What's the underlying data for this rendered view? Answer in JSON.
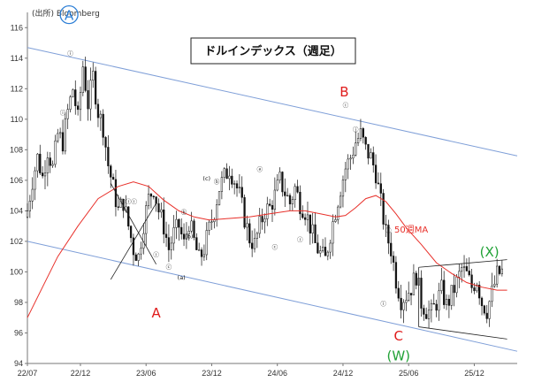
{
  "chart_data": {
    "type": "candlestick",
    "title": "ドルインデックス（週足）",
    "source": "(出所) Bloomberg",
    "ylim": [
      94,
      117
    ],
    "y_ticks": [
      94,
      96,
      98,
      100,
      102,
      104,
      106,
      108,
      110,
      112,
      114,
      116
    ],
    "x_tick_labels": [
      "22/07",
      "22/12",
      "23/06",
      "23/12",
      "24/06",
      "24/12",
      "25/06",
      "25/12"
    ],
    "grid": false,
    "moving_average_label": "50週MA",
    "colors": {
      "up": "#ffffff",
      "down": "#111111",
      "ma": "#e8302a",
      "channel": "#7f9fd8",
      "wave_red": "#e01b1b",
      "wave_green": "#21a236",
      "wave_blue": "#2d7fd6"
    },
    "weekly_close_path": [
      [
        0,
        104.0
      ],
      [
        2,
        106.0
      ],
      [
        4,
        107.5
      ],
      [
        6,
        106.2
      ],
      [
        8,
        108.0
      ],
      [
        10,
        106.8
      ],
      [
        12,
        109.0
      ],
      [
        14,
        108.5
      ],
      [
        16,
        110.5
      ],
      [
        18,
        112.0
      ],
      [
        20,
        110.0
      ],
      [
        22,
        113.5
      ],
      [
        24,
        111.0
      ],
      [
        26,
        112.8
      ],
      [
        28,
        110.5
      ],
      [
        30,
        109.5
      ],
      [
        32,
        107.0
      ],
      [
        34,
        105.5
      ],
      [
        36,
        104.0
      ],
      [
        38,
        104.6
      ],
      [
        40,
        103.0
      ],
      [
        42,
        101.5
      ],
      [
        44,
        101.0
      ],
      [
        46,
        103.2
      ],
      [
        48,
        104.8
      ],
      [
        50,
        105.5
      ],
      [
        52,
        104.0
      ],
      [
        54,
        103.0
      ],
      [
        56,
        101.5
      ],
      [
        58,
        102.5
      ],
      [
        60,
        103.0
      ],
      [
        62,
        101.8
      ],
      [
        64,
        103.3
      ],
      [
        66,
        102.0
      ],
      [
        68,
        100.8
      ],
      [
        70,
        101.5
      ],
      [
        72,
        102.8
      ],
      [
        74,
        104.0
      ],
      [
        76,
        105.5
      ],
      [
        78,
        106.2
      ],
      [
        80,
        106.8
      ],
      [
        82,
        106.0
      ],
      [
        84,
        105.0
      ],
      [
        86,
        103.5
      ],
      [
        88,
        102.2
      ],
      [
        90,
        101.8
      ],
      [
        92,
        103.0
      ],
      [
        94,
        104.0
      ],
      [
        96,
        104.2
      ],
      [
        98,
        105.0
      ],
      [
        100,
        106.0
      ],
      [
        102,
        105.2
      ],
      [
        104,
        104.5
      ],
      [
        106,
        105.5
      ],
      [
        108,
        104.5
      ],
      [
        110,
        104.0
      ],
      [
        112,
        103.0
      ],
      [
        114,
        101.8
      ],
      [
        116,
        101.2
      ],
      [
        118,
        100.8
      ],
      [
        120,
        102.5
      ],
      [
        122,
        104.0
      ],
      [
        124,
        105.5
      ],
      [
        126,
        106.8
      ],
      [
        128,
        107.5
      ],
      [
        130,
        108.5
      ],
      [
        132,
        109.0
      ],
      [
        134,
        108.0
      ],
      [
        136,
        107.5
      ],
      [
        138,
        106.5
      ],
      [
        140,
        104.5
      ],
      [
        142,
        102.5
      ],
      [
        144,
        101.5
      ],
      [
        146,
        99.5
      ],
      [
        148,
        98.2
      ],
      [
        150,
        98.5
      ],
      [
        152,
        99.0
      ],
      [
        154,
        99.8
      ],
      [
        156,
        98.0
      ],
      [
        158,
        97.5
      ],
      [
        160,
        97.3
      ],
      [
        162,
        98.0
      ],
      [
        164,
        98.8
      ],
      [
        166,
        97.8
      ],
      [
        168,
        98.5
      ],
      [
        170,
        99.3
      ],
      [
        172,
        100.2
      ],
      [
        174,
        99.8
      ],
      [
        176,
        99.0
      ],
      [
        178,
        99.5
      ],
      [
        180,
        98.0
      ],
      [
        182,
        97.5
      ],
      [
        184,
        98.6
      ],
      [
        186,
        99.8
      ],
      [
        188,
        100.0
      ]
    ],
    "moving_average_50w": [
      [
        0,
        97.0
      ],
      [
        6,
        99.0
      ],
      [
        12,
        101.0
      ],
      [
        20,
        103.0
      ],
      [
        28,
        104.8
      ],
      [
        36,
        105.6
      ],
      [
        42,
        105.9
      ],
      [
        48,
        105.6
      ],
      [
        54,
        104.7
      ],
      [
        60,
        104.0
      ],
      [
        66,
        103.6
      ],
      [
        72,
        103.4
      ],
      [
        80,
        103.5
      ],
      [
        88,
        103.6
      ],
      [
        96,
        103.8
      ],
      [
        104,
        104.0
      ],
      [
        110,
        104.0
      ],
      [
        116,
        103.8
      ],
      [
        122,
        103.6
      ],
      [
        126,
        103.7
      ],
      [
        130,
        104.2
      ],
      [
        134,
        104.8
      ],
      [
        138,
        105.0
      ],
      [
        142,
        104.6
      ],
      [
        146,
        103.8
      ],
      [
        150,
        102.9
      ],
      [
        156,
        101.8
      ],
      [
        162,
        100.6
      ],
      [
        168,
        99.9
      ],
      [
        174,
        99.3
      ],
      [
        180,
        99.0
      ],
      [
        186,
        98.8
      ],
      [
        190,
        98.8
      ]
    ],
    "channel_lines": [
      {
        "from": [
          0,
          114.7
        ],
        "to": [
          194,
          107.6
        ]
      },
      {
        "from": [
          0,
          102.0
        ],
        "to": [
          194,
          94.8
        ]
      }
    ],
    "wave_labels": [
      {
        "text": "A",
        "x": 16.5,
        "y": 116.5,
        "color": "blue",
        "circled": true
      },
      {
        "text": "A",
        "x": 51,
        "y": 97.0,
        "color": "red"
      },
      {
        "text": "B",
        "x": 125.5,
        "y": 111.5,
        "color": "red"
      },
      {
        "text": "C",
        "x": 147,
        "y": 95.5,
        "color": "red"
      },
      {
        "text": "(W)",
        "x": 147,
        "y": 94.2,
        "color": "green"
      },
      {
        "text": "(X)",
        "x": 183,
        "y": 101.0,
        "color": "green"
      }
    ],
    "annotations": [
      "ⓘ",
      "ⓘ",
      "ⓘⓘⓘ",
      "ⓘ",
      "ⓒ",
      "ⓑ",
      "(a)",
      "(b)",
      "(c)",
      "ⓑ",
      "ⓐ",
      "ⓒ",
      "ⓘ",
      "ⓘ",
      "ⓘ",
      "ⓘ",
      "ⓘ"
    ]
  }
}
